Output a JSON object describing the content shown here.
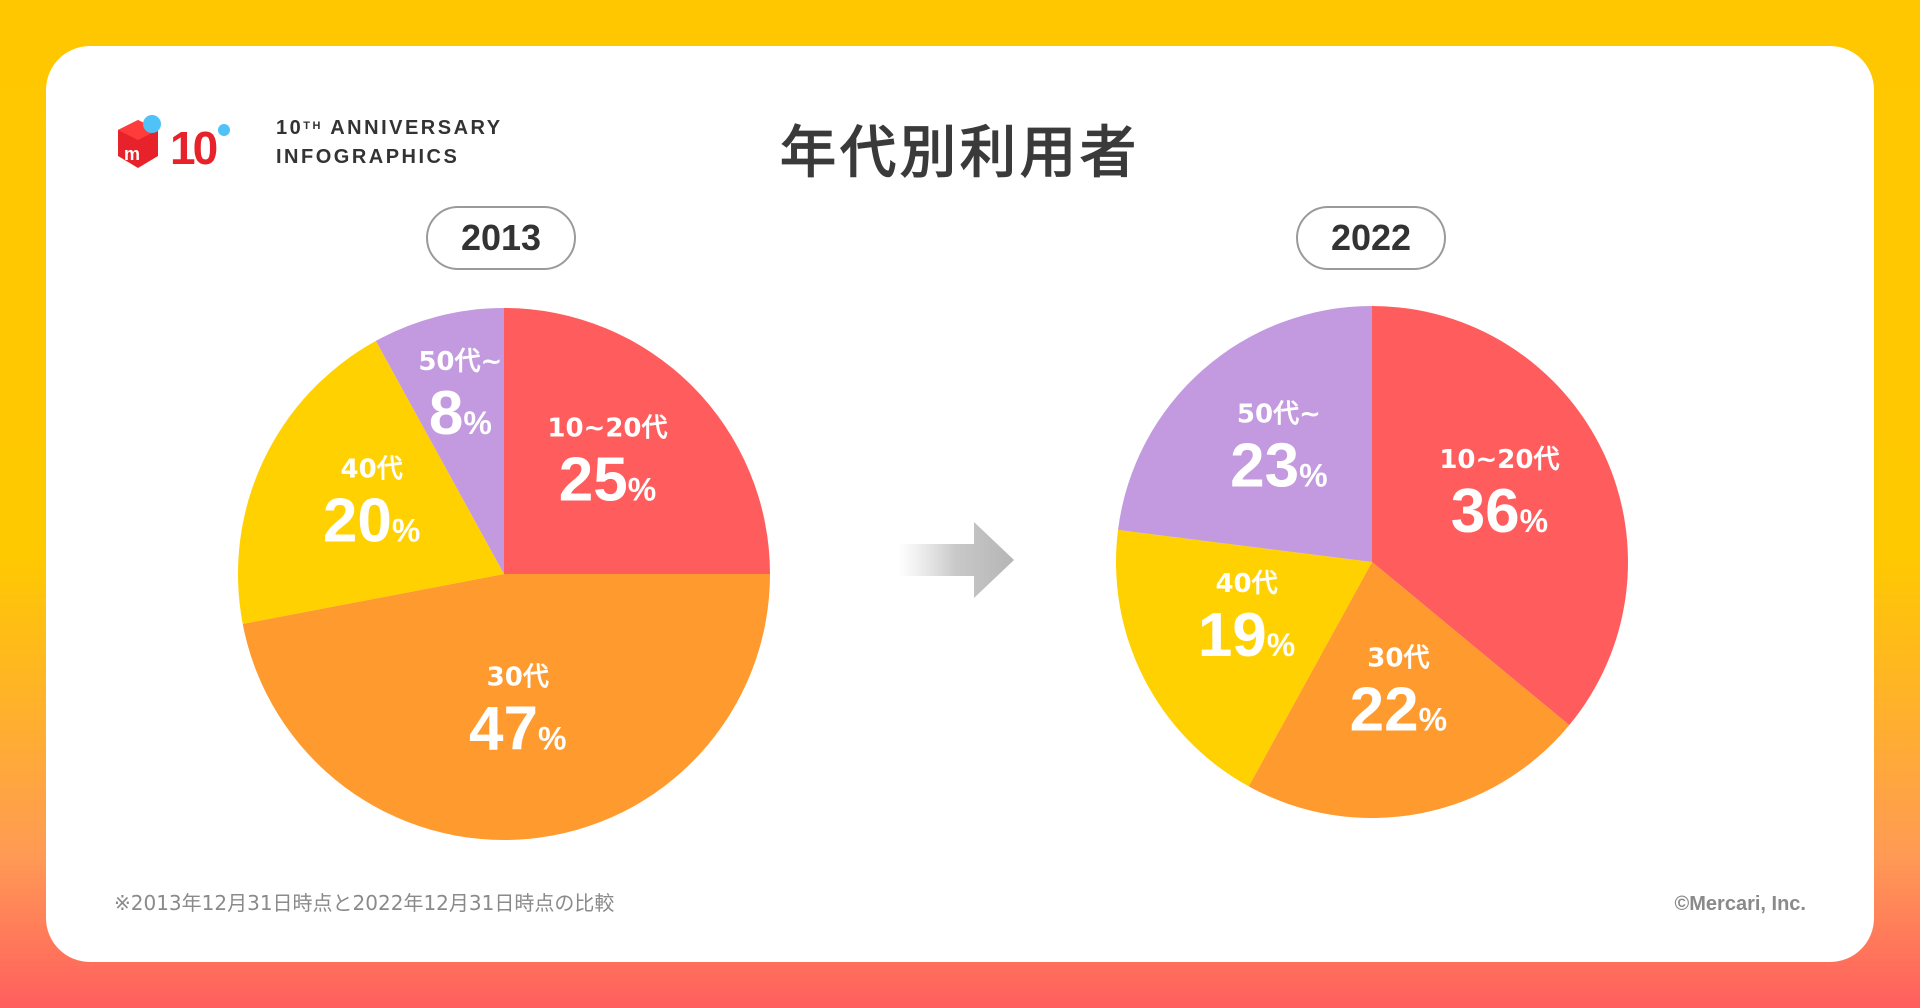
{
  "brand": {
    "logo_number": "10",
    "anniversary_line1": "10",
    "anniversary_sup": "TH",
    "anniversary_line1_rest": " ANNIVERSARY",
    "anniversary_line2": "INFOGRAPHICS"
  },
  "title": "年代別利用者",
  "footnote": "※2013年12月31日時点と2022年12月31日時点の比較",
  "copyright": "©Mercari, Inc.",
  "colors": {
    "red": "#FF5D5D",
    "orange": "#FF9A2E",
    "yellow": "#FFD100",
    "purple": "#C39ADF"
  },
  "chart_data": [
    {
      "type": "pie",
      "title": "2013",
      "categories": [
        "10~20代",
        "30代",
        "40代",
        "50代~"
      ],
      "values": [
        25,
        47,
        20,
        8
      ],
      "unit": "%"
    },
    {
      "type": "pie",
      "title": "2022",
      "categories": [
        "10~20代",
        "30代",
        "40代",
        "50代~"
      ],
      "values": [
        36,
        22,
        19,
        23
      ],
      "unit": "%"
    }
  ]
}
